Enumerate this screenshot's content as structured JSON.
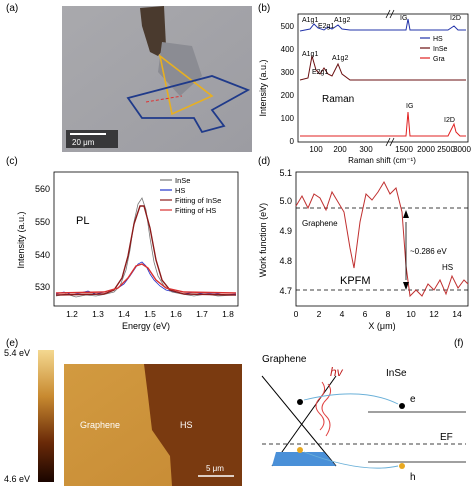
{
  "panels": {
    "a": {
      "label": "(a)",
      "scalebar": "20 μm"
    },
    "b": {
      "label": "(b)",
      "ylabel": "Intensity (a.u.)",
      "xlabel": "Raman shift (cm⁻¹)",
      "yticks": [
        "0",
        "100",
        "200",
        "300",
        "400",
        "500"
      ],
      "xticks_left": [
        "100",
        "200",
        "300"
      ],
      "xticks_right": [
        "1500",
        "2000",
        "2500",
        "3000"
      ],
      "legend": [
        "HS",
        "InSe",
        "Gra"
      ],
      "annotation_raman": "Raman",
      "peaks_top": [
        "A1g1",
        "E2g1",
        "A1g2"
      ],
      "peak_ig": "IG",
      "peak_i2d": "I2D",
      "colors": {
        "hs": "#2233aa",
        "inse": "#6a0f10",
        "gra": "#e02020"
      }
    },
    "c": {
      "label": "(c)",
      "ylabel": "Intensity (a.u.)",
      "xlabel": "Energy (eV)",
      "yticks": [
        "530",
        "540",
        "550",
        "560"
      ],
      "xticks": [
        "1.2",
        "1.3",
        "1.4",
        "1.5",
        "1.6",
        "1.7",
        "1.8"
      ],
      "legend": [
        "InSe",
        "HS",
        "Fitting of InSe",
        "Fitting of HS"
      ],
      "annotation": "PL",
      "colors": {
        "inse": "#777777",
        "hs": "#2233cc",
        "fit_inse": "#8b1a1a",
        "fit_hs": "#d83030"
      }
    },
    "d": {
      "label": "(d)",
      "ylabel": "Work function (eV)",
      "xlabel": "X (μm)",
      "yticks": [
        "4.7",
        "4.8",
        "4.9",
        "5.0",
        "5.1"
      ],
      "xticks": [
        "0",
        "2",
        "4",
        "6",
        "8",
        "10",
        "12",
        "14"
      ],
      "annotation_graphene": "Graphene",
      "annotation_hs": "HS",
      "annotation_kpfm": "KPFM",
      "annotation_delta": "~0.286 eV",
      "color": "#c03030"
    },
    "e": {
      "label": "(e)",
      "colorbar_top": "5.4 eV",
      "colorbar_bottom": "4.6 eV",
      "region_left": "Graphene",
      "region_right": "HS",
      "scalebar": "5 μm"
    },
    "f": {
      "label": "(f)",
      "title_left": "Graphene",
      "title_right": "InSe",
      "hv": "hv",
      "electron": "e",
      "hole": "h",
      "fermi": "EF"
    }
  },
  "chart_data": [
    {
      "type": "line",
      "title": "Raman",
      "xlabel": "Raman shift (cm⁻¹)",
      "ylabel": "Intensity (a.u.)",
      "series": [
        {
          "name": "HS",
          "x": [
            80,
            110,
            120,
            150,
            160,
            200,
            220,
            245,
            260,
            320,
            1500,
            1580,
            1600,
            2600,
            2690,
            2750,
            3000
          ],
          "values": [
            500,
            530,
            540,
            505,
            515,
            505,
            535,
            505,
            500,
            500,
            500,
            530,
            500,
            500,
            515,
            500,
            500
          ]
        },
        {
          "name": "InSe",
          "x": [
            80,
            110,
            118,
            150,
            165,
            200,
            220,
            240,
            260,
            320,
            1500,
            1580,
            1600,
            2600,
            2690,
            2750,
            3000
          ],
          "values": [
            270,
            390,
            330,
            290,
            300,
            290,
            325,
            300,
            285,
            270,
            270,
            270,
            270,
            270,
            270,
            270,
            270
          ]
        },
        {
          "name": "Gra",
          "x": [
            80,
            320,
            1500,
            1575,
            1582,
            1590,
            1600,
            2600,
            2680,
            2690,
            2700,
            2800,
            3000
          ],
          "values": [
            25,
            25,
            25,
            25,
            180,
            30,
            25,
            25,
            60,
            85,
            40,
            25,
            25
          ]
        }
      ]
    },
    {
      "type": "line",
      "title": "PL",
      "xlabel": "Energy (eV)",
      "ylabel": "Intensity (a.u.)",
      "xlim": [
        1.1,
        1.8
      ],
      "ylim": [
        522,
        562
      ],
      "series": [
        {
          "name": "Fitting of InSe",
          "x": [
            1.1,
            1.3,
            1.38,
            1.42,
            1.45,
            1.48,
            1.52,
            1.6,
            1.8
          ],
          "values": [
            524,
            524,
            530,
            545,
            555,
            545,
            530,
            524,
            524
          ]
        },
        {
          "name": "Fitting of HS",
          "x": [
            1.1,
            1.3,
            1.38,
            1.42,
            1.45,
            1.48,
            1.52,
            1.6,
            1.8
          ],
          "values": [
            524,
            524,
            527,
            532,
            535,
            532,
            527,
            524,
            524
          ]
        }
      ]
    },
    {
      "type": "line",
      "title": "KPFM",
      "xlabel": "X (μm)",
      "ylabel": "Work function (eV)",
      "xlim": [
        0,
        15
      ],
      "ylim": [
        4.65,
        5.1
      ],
      "series": [
        {
          "name": "",
          "x": [
            0,
            0.5,
            1,
            1.5,
            2,
            2.5,
            3,
            3.5,
            4,
            4.5,
            5,
            5.5,
            6,
            6.5,
            7,
            7.5,
            8,
            8.5,
            9,
            9.5,
            10,
            10.5,
            11,
            11.5,
            12,
            12.5,
            13,
            13.5,
            14,
            14.5,
            15
          ],
          "values": [
            5.0,
            5.04,
            4.99,
            5.05,
            5.03,
            4.98,
            5.06,
            5.02,
            4.97,
            4.85,
            4.78,
            4.95,
            5.05,
            5.02,
            5.06,
            5.1,
            5.05,
            5.07,
            4.98,
            4.8,
            4.68,
            4.7,
            4.68,
            4.72,
            4.7,
            4.74,
            4.69,
            4.75,
            4.71,
            4.73,
            4.72
          ]
        }
      ]
    }
  ]
}
